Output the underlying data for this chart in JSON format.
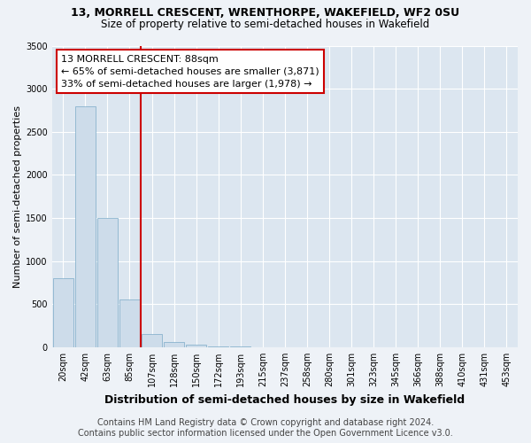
{
  "title1": "13, MORRELL CRESCENT, WRENTHORPE, WAKEFIELD, WF2 0SU",
  "title2": "Size of property relative to semi-detached houses in Wakefield",
  "xlabel": "Distribution of semi-detached houses by size in Wakefield",
  "ylabel": "Number of semi-detached properties",
  "footer1": "Contains HM Land Registry data © Crown copyright and database right 2024.",
  "footer2": "Contains public sector information licensed under the Open Government Licence v3.0.",
  "annotation_title": "13 MORRELL CRESCENT: 88sqm",
  "annotation_line1": "← 65% of semi-detached houses are smaller (3,871)",
  "annotation_line2": "33% of semi-detached houses are larger (1,978) →",
  "categories": [
    "20sqm",
    "42sqm",
    "63sqm",
    "85sqm",
    "107sqm",
    "128sqm",
    "150sqm",
    "172sqm",
    "193sqm",
    "215sqm",
    "237sqm",
    "258sqm",
    "280sqm",
    "301sqm",
    "323sqm",
    "345sqm",
    "366sqm",
    "388sqm",
    "410sqm",
    "431sqm",
    "453sqm"
  ],
  "values": [
    800,
    2800,
    1500,
    550,
    150,
    60,
    30,
    10,
    5,
    2,
    1,
    0,
    0,
    0,
    0,
    0,
    0,
    0,
    0,
    0,
    0
  ],
  "bar_color": "#cddcea",
  "bar_edge_color": "#7aaac8",
  "highlight_color": "#cc0000",
  "red_line_x": 3.5,
  "ylim": [
    0,
    3500
  ],
  "yticks": [
    0,
    500,
    1000,
    1500,
    2000,
    2500,
    3000,
    3500
  ],
  "bg_color": "#eef2f7",
  "plot_bg_color": "#dce6f0",
  "grid_color": "#ffffff",
  "annotation_box_color": "#ffffff",
  "annotation_box_edge": "#cc0000",
  "title1_fontsize": 9,
  "title2_fontsize": 8.5,
  "ylabel_fontsize": 8,
  "xlabel_fontsize": 9,
  "annotation_fontsize": 8,
  "tick_fontsize": 7,
  "footer_fontsize": 7
}
